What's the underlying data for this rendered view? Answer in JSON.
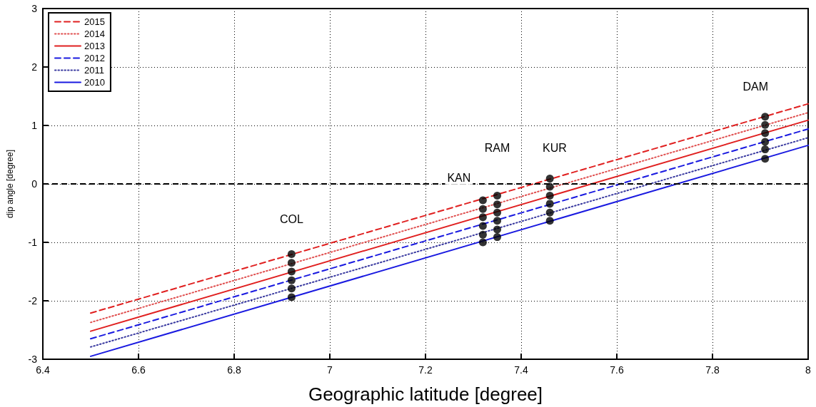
{
  "chart_data": {
    "type": "line",
    "xlabel": "Geographic latitude [degree]",
    "ylabel": "dip angle [degree]",
    "xlim": [
      6.4,
      8
    ],
    "xticks": [
      6.4,
      6.6,
      6.8,
      7,
      7.2,
      7.4,
      7.6,
      7.8,
      8
    ],
    "ylim": [
      -3,
      3
    ],
    "yticks": [
      -3,
      -2,
      -1,
      0,
      1,
      2,
      3
    ],
    "grid": true,
    "legend": "top left",
    "marker": "none",
    "series": [
      {
        "name": "2015",
        "color": "#e02020",
        "line_style": "dashed",
        "x": [
          6.5,
          8
        ],
        "values": [
          -2.21,
          1.37
        ]
      },
      {
        "name": "2014",
        "color": "#e05050",
        "line_style": "dotted",
        "x": [
          6.5,
          8
        ],
        "values": [
          -2.37,
          1.22
        ]
      },
      {
        "name": "2013",
        "color": "#e02020",
        "line_style": "solid",
        "x": [
          6.5,
          8
        ],
        "values": [
          -2.52,
          1.09
        ]
      },
      {
        "name": "2012",
        "color": "#1a1ae0",
        "line_style": "dashed",
        "x": [
          6.5,
          8
        ],
        "values": [
          -2.65,
          0.94
        ]
      },
      {
        "name": "2011",
        "color": "#3a3aa0",
        "line_style": "dotted",
        "x": [
          6.5,
          8
        ],
        "values": [
          -2.79,
          0.79
        ]
      },
      {
        "name": "2010",
        "color": "#1a1ae0",
        "line_style": "solid",
        "x": [
          6.5,
          8
        ],
        "values": [
          -2.95,
          0.66
        ]
      },
      {
        "type": "scatter",
        "marker": "circle",
        "color": "#000000",
        "x": [
          6.92,
          6.92,
          6.92,
          6.92,
          6.92,
          6.92,
          7.32,
          7.32,
          7.32,
          7.32,
          7.32,
          7.32,
          7.35,
          7.35,
          7.35,
          7.35,
          7.35,
          7.35,
          7.46,
          7.46,
          7.46,
          7.46,
          7.46,
          7.46,
          7.91,
          7.91,
          7.91,
          7.91,
          7.91,
          7.91
        ],
        "values": [
          -1.2,
          -1.35,
          -1.5,
          -1.65,
          -1.79,
          -1.94,
          -0.28,
          -0.43,
          -0.57,
          -0.72,
          -0.87,
          -1.0,
          -0.2,
          -0.35,
          -0.49,
          -0.63,
          -0.78,
          -0.91,
          0.09,
          -0.05,
          -0.2,
          -0.34,
          -0.49,
          -0.63,
          1.15,
          1.01,
          0.87,
          0.72,
          0.59,
          0.43
        ]
      }
    ],
    "ref_lines": [
      {
        "axis": "y",
        "value": 0,
        "color": "#000000",
        "line_style": "dashed"
      }
    ],
    "annotations": [
      {
        "text": "COL",
        "x": 6.92,
        "y": -0.6
      },
      {
        "text": "KAN",
        "x": 7.27,
        "y": 0.1
      },
      {
        "text": "RAM",
        "x": 7.35,
        "y": 0.62
      },
      {
        "text": "KUR",
        "x": 7.47,
        "y": 0.62
      },
      {
        "text": "DAM",
        "x": 7.89,
        "y": 1.67
      }
    ]
  }
}
